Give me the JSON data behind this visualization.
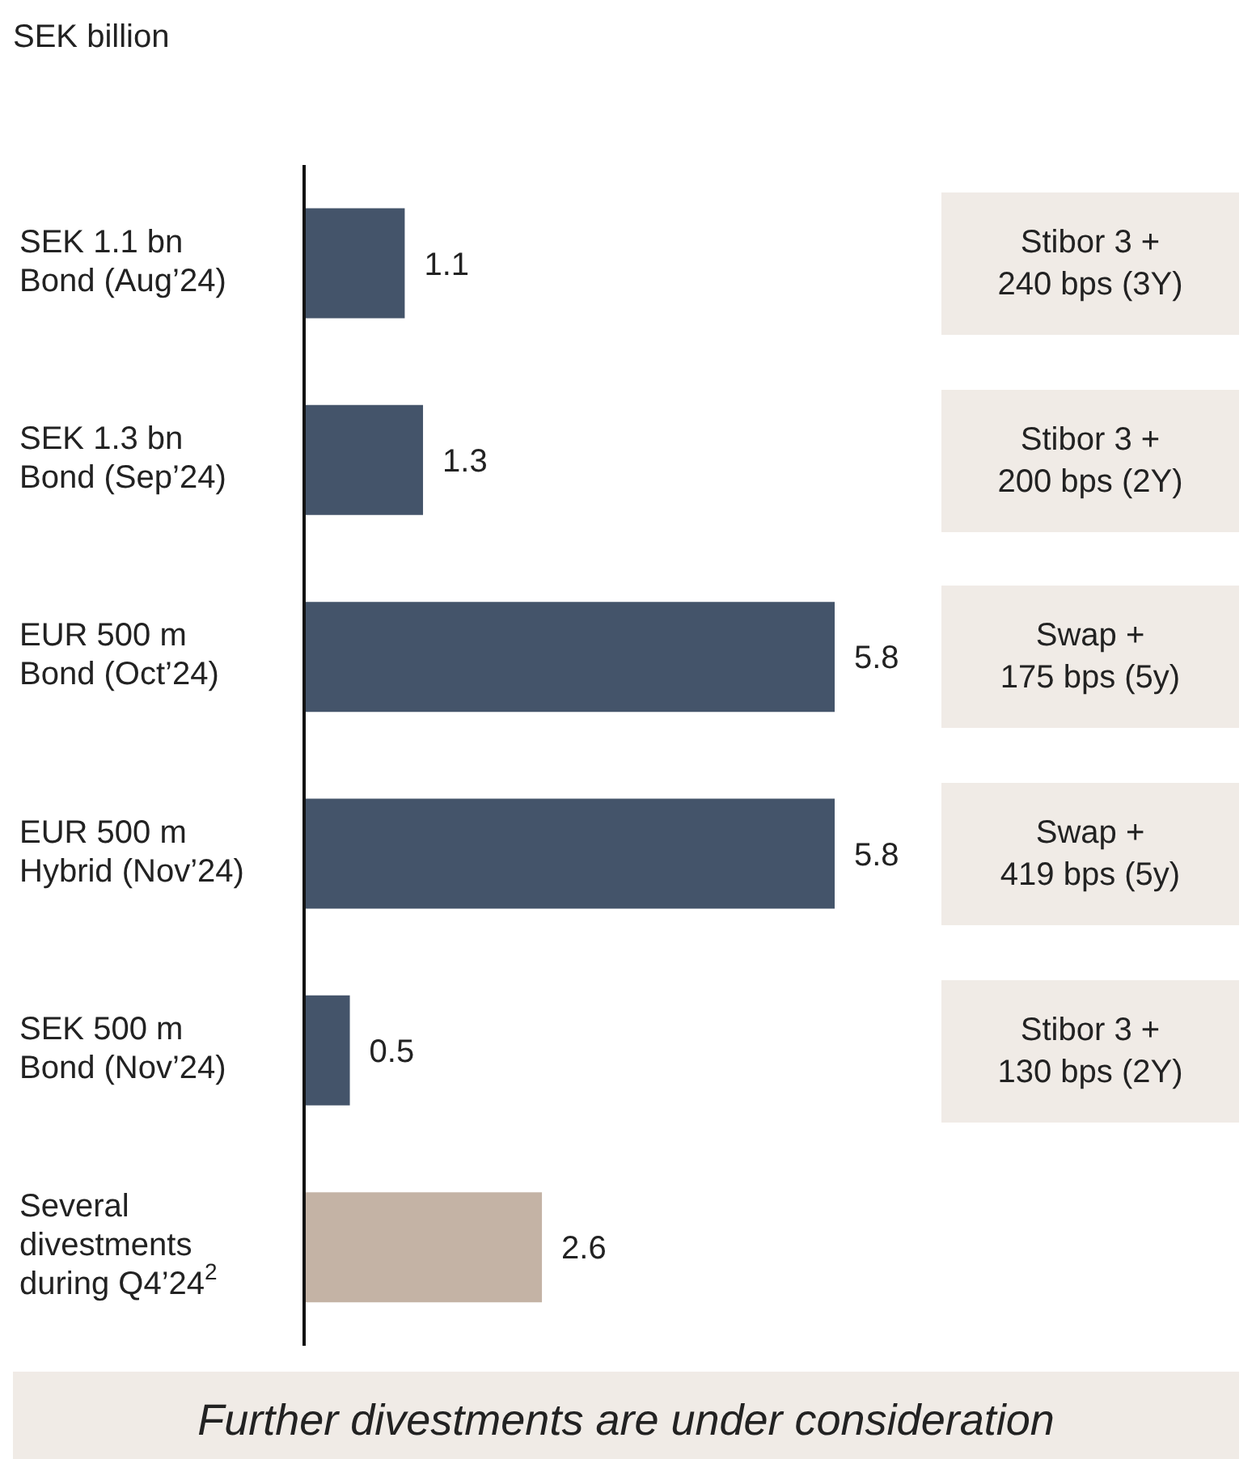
{
  "chart_data": {
    "type": "bar",
    "orientation": "horizontal",
    "title": "SEK billion",
    "categories": [
      "SEK 1.1 bn\nBond (Aug’24)",
      "SEK 1.3 bn\nBond (Sep’24)",
      "EUR 500 m\nBond (Oct’24)",
      "EUR 500 m\nHybrid (Nov’24)",
      "SEK 500 m\nBond (Nov’24)",
      "Several\ndivestments\nduring Q4’24$^{2}$"
    ],
    "values": [
      1.1,
      1.3,
      5.8,
      5.8,
      0.5,
      2.6
    ],
    "colors": [
      "#44546a",
      "#44546a",
      "#44546a",
      "#44546a",
      "#44546a",
      "#c4b3a5"
    ],
    "data_labels": true,
    "annotations": [
      "Stibor 3 +\n240 bps (3Y)",
      "Stibor 3 +\n200 bps (2Y)",
      "Swap +\n175 bps (5y)",
      "Swap +\n419 bps (5y)",
      "Stibor 3 +\n130 bps (2Y)",
      "Further divestments are under consideration"
    ]
  }
}
